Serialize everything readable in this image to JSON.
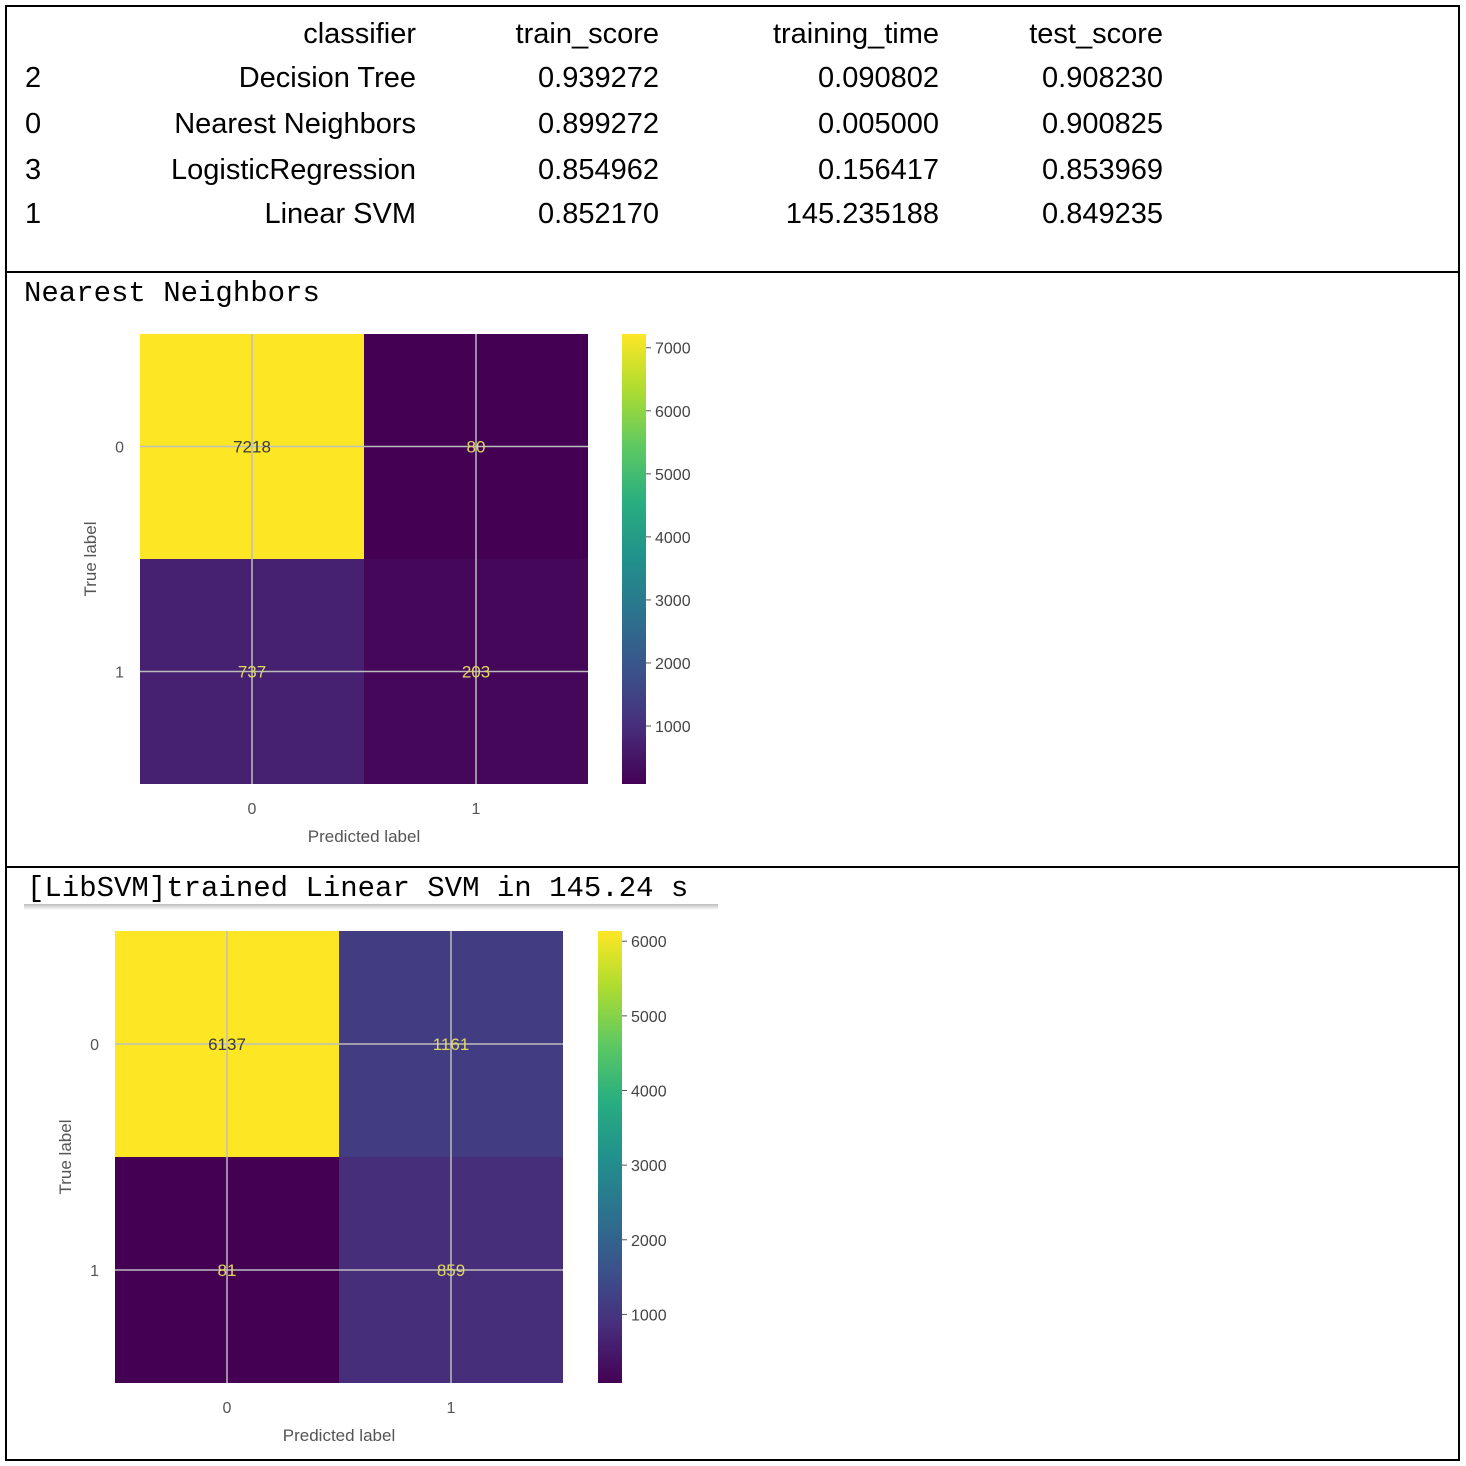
{
  "table": {
    "columns": [
      "classifier",
      "train_score",
      "training_time",
      "test_score"
    ],
    "rows": [
      {
        "index": "2",
        "classifier": "Decision Tree",
        "train_score": "0.939272",
        "training_time": "0.090802",
        "test_score": "0.908230"
      },
      {
        "index": "0",
        "classifier": "Nearest Neighbors",
        "train_score": "0.899272",
        "training_time": "0.005000",
        "test_score": "0.900825"
      },
      {
        "index": "3",
        "classifier": "LogisticRegression",
        "train_score": "0.854962",
        "training_time": "0.156417",
        "test_score": "0.853969"
      },
      {
        "index": "1",
        "classifier": "Linear SVM",
        "train_score": "0.852170",
        "training_time": "145.235188",
        "test_score": "0.849235"
      }
    ]
  },
  "nn_section": {
    "caption": "Nearest Neighbors"
  },
  "svm_section": {
    "caption": "[LibSVM]trained Linear SVM in 145.24 s"
  },
  "colormap": [
    "#440154",
    "#472d7b",
    "#3b528b",
    "#2c728e",
    "#21918c",
    "#28ae80",
    "#5ec962",
    "#addc30",
    "#fde725"
  ],
  "chart_data": [
    {
      "type": "heatmap",
      "x": [
        "0",
        "1"
      ],
      "y": [
        "0",
        "1"
      ],
      "values": [
        [
          7218,
          80
        ],
        [
          737,
          203
        ]
      ],
      "xlabel": "Predicted label",
      "ylabel": "True label",
      "colorbar_ticks": [
        1000,
        2000,
        3000,
        4000,
        5000,
        6000,
        7000
      ],
      "colorbar_range": [
        80,
        7218
      ],
      "grid": true
    },
    {
      "type": "heatmap",
      "x": [
        "0",
        "1"
      ],
      "y": [
        "0",
        "1"
      ],
      "values": [
        [
          6137,
          1161
        ],
        [
          81,
          859
        ]
      ],
      "xlabel": "Predicted label",
      "ylabel": "True label",
      "colorbar_ticks": [
        1000,
        2000,
        3000,
        4000,
        5000,
        6000
      ],
      "colorbar_range": [
        81,
        6137
      ],
      "grid": true
    }
  ]
}
